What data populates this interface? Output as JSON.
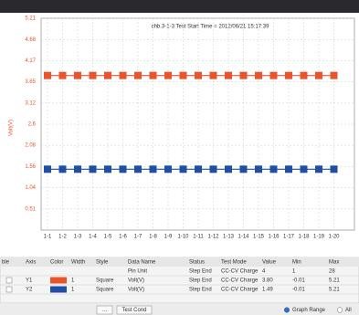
{
  "chart_data": {
    "type": "line",
    "title": "chb.3-1-3 Test Start Time = 2012/06/21 15:17:39",
    "y_label": "Volt(V)",
    "categories": [
      "1-1",
      "1-2",
      "1-3",
      "1-4",
      "1-5",
      "1-6",
      "1-7",
      "1-8",
      "1-9",
      "1-10",
      "1-11",
      "1-12",
      "1-13",
      "1-14",
      "1-15",
      "1-16",
      "1-17",
      "1-18",
      "1-19",
      "1-20"
    ],
    "series": [
      {
        "name": "Y1",
        "color": "#e9542b",
        "values": [
          3.8,
          3.8,
          3.8,
          3.8,
          3.8,
          3.8,
          3.8,
          3.8,
          3.8,
          3.8,
          3.8,
          3.8,
          3.8,
          3.8,
          3.8,
          3.8,
          3.8,
          3.8,
          3.8,
          3.8
        ]
      },
      {
        "name": "Y2",
        "color": "#1f4ea3",
        "values": [
          1.49,
          1.49,
          1.49,
          1.49,
          1.49,
          1.49,
          1.49,
          1.49,
          1.49,
          1.49,
          1.49,
          1.49,
          1.49,
          1.49,
          1.49,
          1.49,
          1.49,
          1.49,
          1.49,
          1.49
        ]
      }
    ],
    "ylim": [
      -0.01,
      5.21
    ],
    "yticks": [
      0.51,
      1.04,
      1.56,
      2.08,
      2.6,
      3.12,
      3.65,
      4.17,
      4.68,
      5.21
    ],
    "grid": true
  },
  "table": {
    "columns": [
      "ble",
      "Axis",
      "Color",
      "Width",
      "Style",
      "Data Name",
      "Status",
      "Test Mode",
      "Value",
      "Min",
      "Max"
    ],
    "rows": [
      {
        "data_name": "Pin Unit",
        "status": "Step End",
        "mode": "CC-CV Charge",
        "value": "4",
        "min": "1",
        "max": "28"
      },
      {
        "axis": "Y1",
        "width": "1",
        "style": "Square",
        "data_name": "Volt(V)",
        "status": "Step End",
        "mode": "CC-CV Charge",
        "value": "3.80",
        "min": "-0.01",
        "max": "5.21"
      },
      {
        "axis": "Y2",
        "width": "1",
        "style": "Square",
        "data_name": "Volt(V)",
        "status": "Step End",
        "mode": "CC-CV Charge",
        "value": "1.49",
        "min": "-0.01",
        "max": "5.21"
      }
    ]
  },
  "footer": {
    "more_button": "...",
    "cond_button": "Test Cond",
    "range_radio": "Graph Range",
    "all_radio": "All"
  }
}
